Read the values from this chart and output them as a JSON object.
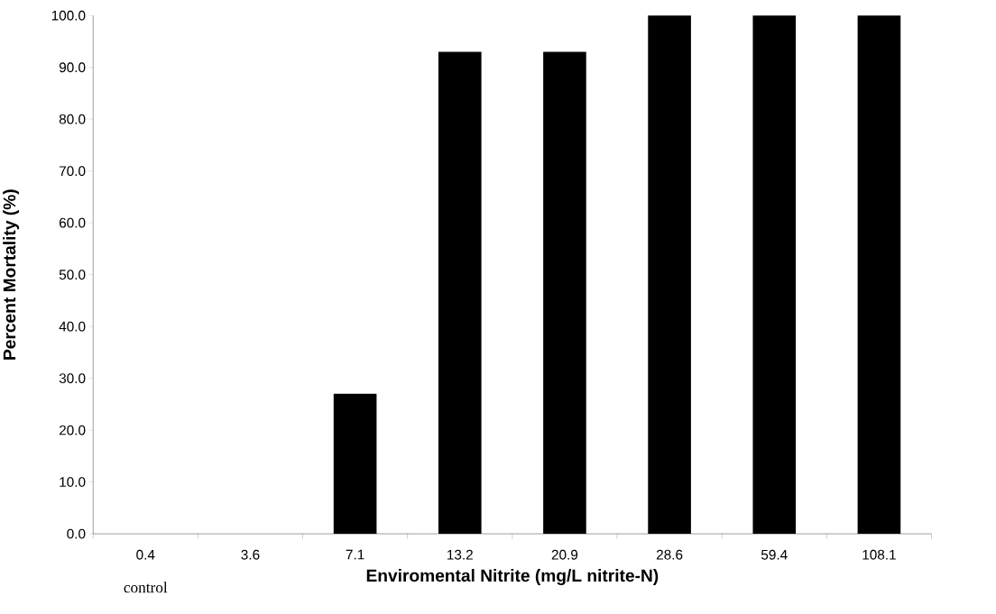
{
  "chart_data": {
    "type": "bar",
    "xlabel": "Enviromental Nitrite (mg/L nitrite-N)",
    "ylabel": "Percent Mortality (%)",
    "categories": [
      "0.4",
      "3.6",
      "7.1",
      "13.2",
      "20.9",
      "28.6",
      "59.4",
      "108.1"
    ],
    "values": [
      0,
      0,
      27,
      93,
      93,
      100,
      100,
      100
    ],
    "color": "#000000",
    "ylim": [
      0,
      100
    ],
    "yticks": [
      {
        "value": 0,
        "label": "0.0"
      },
      {
        "value": 10,
        "label": "10.0"
      },
      {
        "value": 20,
        "label": "20.0"
      },
      {
        "value": 30,
        "label": "30.0"
      },
      {
        "value": 40,
        "label": "40.0"
      },
      {
        "value": 50,
        "label": "50.0"
      },
      {
        "value": 60,
        "label": "60.0"
      },
      {
        "value": 70,
        "label": "70.0"
      },
      {
        "value": 80,
        "label": "80.0"
      },
      {
        "value": 90,
        "label": "90.0"
      },
      {
        "value": 100,
        "label": "100.0"
      }
    ],
    "annotations": [
      "control"
    ],
    "grid": false
  }
}
